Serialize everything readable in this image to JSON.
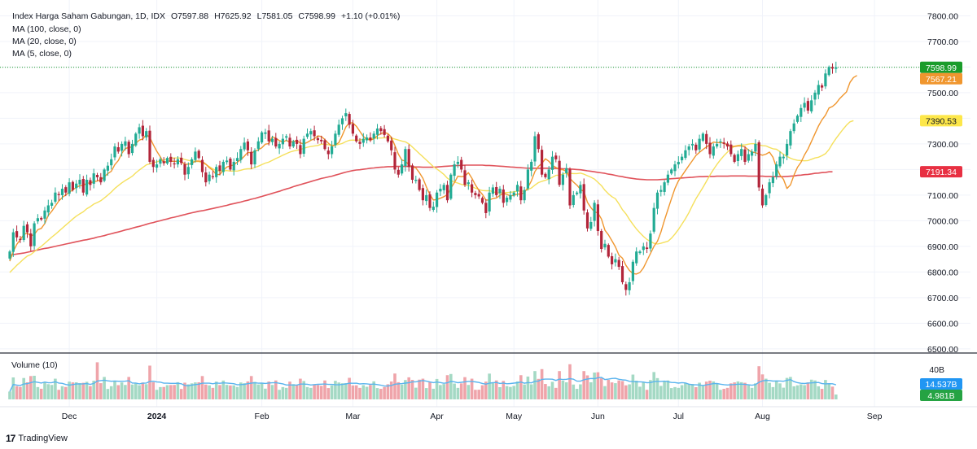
{
  "header": {
    "symbol": "Index Harga Saham Gabungan, 1D, IDX",
    "open": "O7597.88",
    "high": "H7625.92",
    "low": "L7581.05",
    "close": "C7598.99",
    "change": "+1.10 (+0.01%)"
  },
  "indicators": {
    "ma100": "MA (100, close, 0)",
    "ma20": "MA (20, close, 0)",
    "ma5": "MA (5, close, 0)"
  },
  "volume_panel": {
    "label": "Volume (10)"
  },
  "branding": {
    "name": "TradingView"
  },
  "colors": {
    "up": "#22ab94",
    "down": "#b2253a",
    "ma100": "#e0525a",
    "ma20": "#f5e05c",
    "ma5": "#f0962e",
    "vol_up": "#a4d9c4",
    "vol_down": "#efa4aa",
    "vol_ma": "#5ab4ee",
    "last_price_bg": "#1a9c2a",
    "ma5_label_bg": "#f0962e",
    "ma20_label_bg": "#fde74a",
    "ma100_label_bg": "#e83042",
    "vol_ma_label_bg": "#2196f3",
    "vol_last_bg": "#25a343"
  },
  "chart_data": {
    "type": "candlestick",
    "title": "Index Harga Saham Gabungan, 1D, IDX",
    "y_axis": {
      "ticks": [
        "7800.00",
        "7700.00",
        "7600.00",
        "7500.00",
        "7400.00",
        "7300.00",
        "7200.00",
        "7100.00",
        "7000.00",
        "6900.00",
        "6800.00",
        "6700.00",
        "6600.00",
        "6500.00"
      ],
      "ylim": [
        6490,
        7830
      ]
    },
    "x_axis": {
      "labels": [
        {
          "label": "Dec",
          "bar": 17,
          "bold": false
        },
        {
          "label": "2024",
          "bar": 42,
          "bold": true
        },
        {
          "label": "Feb",
          "bar": 72,
          "bold": false
        },
        {
          "label": "Mar",
          "bar": 98,
          "bold": false
        },
        {
          "label": "Apr",
          "bar": 122,
          "bold": false
        },
        {
          "label": "May",
          "bar": 144,
          "bold": false
        },
        {
          "label": "Jun",
          "bar": 168,
          "bold": false
        },
        {
          "label": "Jul",
          "bar": 191,
          "bold": false
        },
        {
          "label": "Aug",
          "bar": 215,
          "bold": false
        },
        {
          "label": "Sep",
          "bar": 247,
          "bold": false
        }
      ]
    },
    "price_labels": {
      "last": "7598.99",
      "ma5": "7567.21",
      "ma20": "7390.53",
      "ma100": "7191.34"
    },
    "volume_axis": {
      "top_label": "40B",
      "vol_ma_label": "14.537B",
      "last_volume_label": "4.981B"
    },
    "closes": [
      6880,
      6955,
      6935,
      6925,
      6980,
      6955,
      6900,
      6990,
      7010,
      7005,
      7040,
      7060,
      7070,
      7110,
      7100,
      7125,
      7110,
      7150,
      7120,
      7145,
      7160,
      7110,
      7160,
      7140,
      7185,
      7170,
      7150,
      7200,
      7215,
      7240,
      7290,
      7270,
      7300,
      7310,
      7260,
      7300,
      7340,
      7365,
      7330,
      7350,
      7230,
      7210,
      7220,
      7240,
      7225,
      7245,
      7230,
      7220,
      7240,
      7225,
      7180,
      7210,
      7240,
      7270,
      7245,
      7190,
      7150,
      7180,
      7170,
      7210,
      7195,
      7230,
      7235,
      7200,
      7230,
      7245,
      7280,
      7305,
      7275,
      7220,
      7275,
      7310,
      7345,
      7345,
      7310,
      7320,
      7290,
      7300,
      7320,
      7330,
      7290,
      7310,
      7300,
      7260,
      7320,
      7340,
      7350,
      7330,
      7315,
      7310,
      7280,
      7260,
      7290,
      7340,
      7375,
      7400,
      7420,
      7375,
      7340,
      7310,
      7300,
      7320,
      7325,
      7315,
      7340,
      7360,
      7350,
      7335,
      7310,
      7275,
      7200,
      7180,
      7220,
      7280,
      7210,
      7160,
      7160,
      7120,
      7080,
      7100,
      7050,
      7055,
      7110,
      7125,
      7140,
      7080,
      7180,
      7220,
      7230,
      7200,
      7140,
      7150,
      7110,
      7100,
      7095,
      7070,
      7030,
      7110,
      7130,
      7100,
      7125,
      7070,
      7090,
      7100,
      7110,
      7140,
      7080,
      7120,
      7200,
      7230,
      7330,
      7280,
      7180,
      7170,
      7200,
      7250,
      7240,
      7140,
      7180,
      7205,
      7060,
      7100,
      7110,
      7140,
      7040,
      6970,
      6995,
      7070,
      6960,
      6890,
      6910,
      6860,
      6830,
      6850,
      6820,
      6760,
      6730,
      6760,
      6840,
      6880,
      6880,
      6900,
      6890,
      6950,
      7050,
      7110,
      7120,
      7150,
      7180,
      7200,
      7220,
      7230,
      7250,
      7275,
      7290,
      7300,
      7275,
      7320,
      7340,
      7300,
      7260,
      7290,
      7300,
      7310,
      7300,
      7290,
      7260,
      7230,
      7260,
      7280,
      7230,
      7260,
      7270,
      7300,
      7130,
      7060,
      7100,
      7150,
      7170,
      7220,
      7250,
      7250,
      7300,
      7350,
      7380,
      7410,
      7440,
      7460,
      7430,
      7470,
      7500,
      7530,
      7520,
      7575,
      7600,
      7594,
      7598.99
    ],
    "ma5": [
      6842,
      6880,
      6908,
      6926,
      6946,
      6952,
      6941,
      6946,
      6965,
      6970,
      6989,
      7021,
      7037,
      7057,
      7077,
      7091,
      7101,
      7111,
      7121,
      7130,
      7137,
      7137,
      7147,
      7147,
      7153,
      7155,
      7161,
      7171,
      7184,
      7193,
      7219,
      7235,
      7263,
      7282,
      7286,
      7288,
      7302,
      7315,
      7319,
      7337,
      7325,
      7297,
      7271,
      7250,
      7225,
      7234,
      7232,
      7232,
      7232,
      7232,
      7220,
      7221,
      7223,
      7233,
      7233,
      7231,
      7221,
      7207,
      7197,
      7180,
      7181,
      7197,
      7210,
      7214,
      7218,
      7229,
      7238,
      7252,
      7267,
      7265,
      7271,
      7277,
      7285,
      7299,
      7301,
      7328,
      7322,
      7313,
      7307,
      7314,
      7306,
      7310,
      7312,
      7304,
      7300,
      7306,
      7314,
      7320,
      7331,
      7329,
      7317,
      7303,
      7291,
      7296,
      7305,
      7334,
      7366,
      7382,
      7382,
      7369,
      7349,
      7329,
      7319,
      7314,
      7320,
      7332,
      7340,
      7345,
      7340,
      7326,
      7294,
      7260,
      7237,
      7233,
      7218,
      7210,
      7206,
      7188,
      7166,
      7132,
      7102,
      7081,
      7083,
      7088,
      7094,
      7102,
      7127,
      7149,
      7174,
      7172,
      7174,
      7188,
      7166,
      7140,
      7119,
      7103,
      7081,
      7081,
      7087,
      7089,
      7099,
      7107,
      7103,
      7097,
      7099,
      7104,
      7104,
      7110,
      7130,
      7156,
      7192,
      7212,
      7224,
      7242,
      7232,
      7216,
      7208,
      7200,
      7199,
      7193,
      7165,
      7151,
      7139,
      7123,
      7114,
      7072,
      7051,
      7035,
      7030,
      7007,
      6963,
      6945,
      6922,
      6898,
      6866,
      6854,
      6826,
      6806,
      6794,
      6792,
      6798,
      6816,
      6844,
      6872,
      6900,
      6920,
      6956,
      7002,
      7044,
      7086,
      7126,
      7156,
      7176,
      7196,
      7216,
      7235,
      7255,
      7267,
      7278,
      7288,
      7297,
      7307,
      7305,
      7305,
      7304,
      7294,
      7292,
      7290,
      7292,
      7292,
      7288,
      7276,
      7268,
      7266,
      7260,
      7256,
      7260,
      7268,
      7248,
      7208,
      7178,
      7162,
      7126,
      7140,
      7178,
      7209,
      7228,
      7257,
      7280,
      7310,
      7340,
      7370,
      7394,
      7412,
      7440,
      7446,
      7458,
      7476,
      7490,
      7503,
      7540,
      7559,
      7567
    ],
    "ma20": [
      6798,
      6812,
      6826,
      6838,
      6851,
      6862,
      6868,
      6879,
      6890,
      6900,
      6912,
      6924,
      6936,
      6947,
      6959,
      6971,
      6983,
      6995,
      7007,
      7018,
      7027,
      7035,
      7047,
      7055,
      7065,
      7071,
      7078,
      7089,
      7100,
      7112,
      7126,
      7137,
      7148,
      7157,
      7165,
      7174,
      7187,
      7198,
      7208,
      7218,
      7222,
      7227,
      7230,
      7235,
      7237,
      7241,
      7244,
      7245,
      7245,
      7244,
      7239,
      7236,
      7233,
      7231,
      7231,
      7226,
      7220,
      7211,
      7203,
      7196,
      7194,
      7195,
      7196,
      7194,
      7194,
      7194,
      7197,
      7201,
      7203,
      7203,
      7208,
      7213,
      7219,
      7225,
      7229,
      7236,
      7243,
      7249,
      7256,
      7262,
      7268,
      7272,
      7275,
      7278,
      7283,
      7287,
      7290,
      7292,
      7294,
      7299,
      7299,
      7297,
      7295,
      7295,
      7298,
      7302,
      7309,
      7314,
      7315,
      7314,
      7315,
      7318,
      7319,
      7321,
      7322,
      7323,
      7323,
      7324,
      7324,
      7323,
      7319,
      7315,
      7311,
      7308,
      7300,
      7288,
      7275,
      7262,
      7250,
      7237,
      7224,
      7211,
      7202,
      7192,
      7181,
      7166,
      7157,
      7151,
      7147,
      7142,
      7139,
      7138,
      7133,
      7127,
      7122,
      7118,
      7117,
      7117,
      7114,
      7109,
      7109,
      7109,
      7110,
      7111,
      7113,
      7116,
      7116,
      7116,
      7122,
      7128,
      7139,
      7149,
      7154,
      7158,
      7163,
      7170,
      7177,
      7178,
      7182,
      7187,
      7185,
      7184,
      7184,
      7186,
      7182,
      7176,
      7170,
      7163,
      7150,
      7137,
      7119,
      7105,
      7094,
      7086,
      7066,
      7043,
      7027,
      7005,
      6986,
      6968,
      6953,
      6939,
      6927,
      6919,
      6912,
      6909,
      6912,
      6916,
      6920,
      6932,
      6948,
      6966,
      6987,
      7008,
      7032,
      7060,
      7086,
      7108,
      7130,
      7154,
      7178,
      7200,
      7220,
      7238,
      7254,
      7268,
      7281,
      7291,
      7294,
      7296,
      7296,
      7299,
      7301,
      7300,
      7296,
      7293,
      7292,
      7286,
      7281,
      7279,
      7270,
      7259,
      7251,
      7244,
      7239,
      7236,
      7235,
      7234,
      7235,
      7240,
      7245,
      7248,
      7254,
      7262,
      7278,
      7301,
      7321,
      7339,
      7357,
      7373,
      7386,
      7391
    ],
    "ma100": [
      6866,
      6868,
      6870,
      6872,
      6874,
      6877,
      6880,
      6883,
      6886,
      6889,
      6892,
      6894,
      6897,
      6900,
      6903,
      6906,
      6909,
      6912,
      6915,
      6918,
      6921,
      6924,
      6926,
      6929,
      6932,
      6936,
      6939,
      6942,
      6946,
      6949,
      6953,
      6956,
      6960,
      6964,
      6967,
      6971,
      6975,
      6978,
      6982,
      6986,
      6990,
      6993,
      6997,
      7000,
      7004,
      7007,
      7011,
      7014,
      7017,
      7021,
      7024,
      7028,
      7031,
      7034,
      7037,
      7039,
      7042,
      7045,
      7048,
      7051,
      7054,
      7057,
      7060,
      7064,
      7067,
      7070,
      7073,
      7077,
      7080,
      7084,
      7087,
      7091,
      7095,
      7099,
      7103,
      7107,
      7111,
      7115,
      7120,
      7124,
      7128,
      7133,
      7137,
      7141,
      7145,
      7149,
      7153,
      7157,
      7161,
      7165,
      7168,
      7171,
      7174,
      7178,
      7182,
      7186,
      7190,
      7193,
      7196,
      7198,
      7199,
      7201,
      7203,
      7205,
      7206,
      7208,
      7209,
      7210,
      7211,
      7211,
      7212,
      7212,
      7212,
      7212,
      7212,
      7211,
      7210,
      7210,
      7209,
      7209,
      7209,
      7209,
      7210,
      7211,
      7212,
      7213,
      7214,
      7215,
      7216,
      7216,
      7217,
      7217,
      7217,
      7217,
      7217,
      7217,
      7216,
      7216,
      7215,
      7214,
      7213,
      7212,
      7211,
      7210,
      7209,
      7208,
      7207,
      7206,
      7205,
      7205,
      7205,
      7205,
      7205,
      7205,
      7205,
      7205,
      7204,
      7204,
      7203,
      7203,
      7202,
      7201,
      7200,
      7199,
      7197,
      7195,
      7193,
      7191,
      7189,
      7187,
      7185,
      7182,
      7180,
      7177,
      7174,
      7172,
      7169,
      7167,
      7165,
      7163,
      7162,
      7161,
      7160,
      7160,
      7160,
      7160,
      7161,
      7162,
      7163,
      7164,
      7165,
      7166,
      7167,
      7168,
      7169,
      7170,
      7171,
      7172,
      7172,
      7173,
      7173,
      7173,
      7174,
      7174,
      7174,
      7174,
      7175,
      7175,
      7175,
      7175,
      7175,
      7174,
      7174,
      7174,
      7174,
      7174,
      7173,
      7173,
      7172,
      7172,
      7172,
      7172,
      7173,
      7174,
      7175,
      7177,
      7178,
      7180,
      7181,
      7183,
      7185,
      7186,
      7188,
      7189,
      7191,
      7191
    ],
    "volume_note": "volume bars in billions (B), 10-period volume MA"
  }
}
